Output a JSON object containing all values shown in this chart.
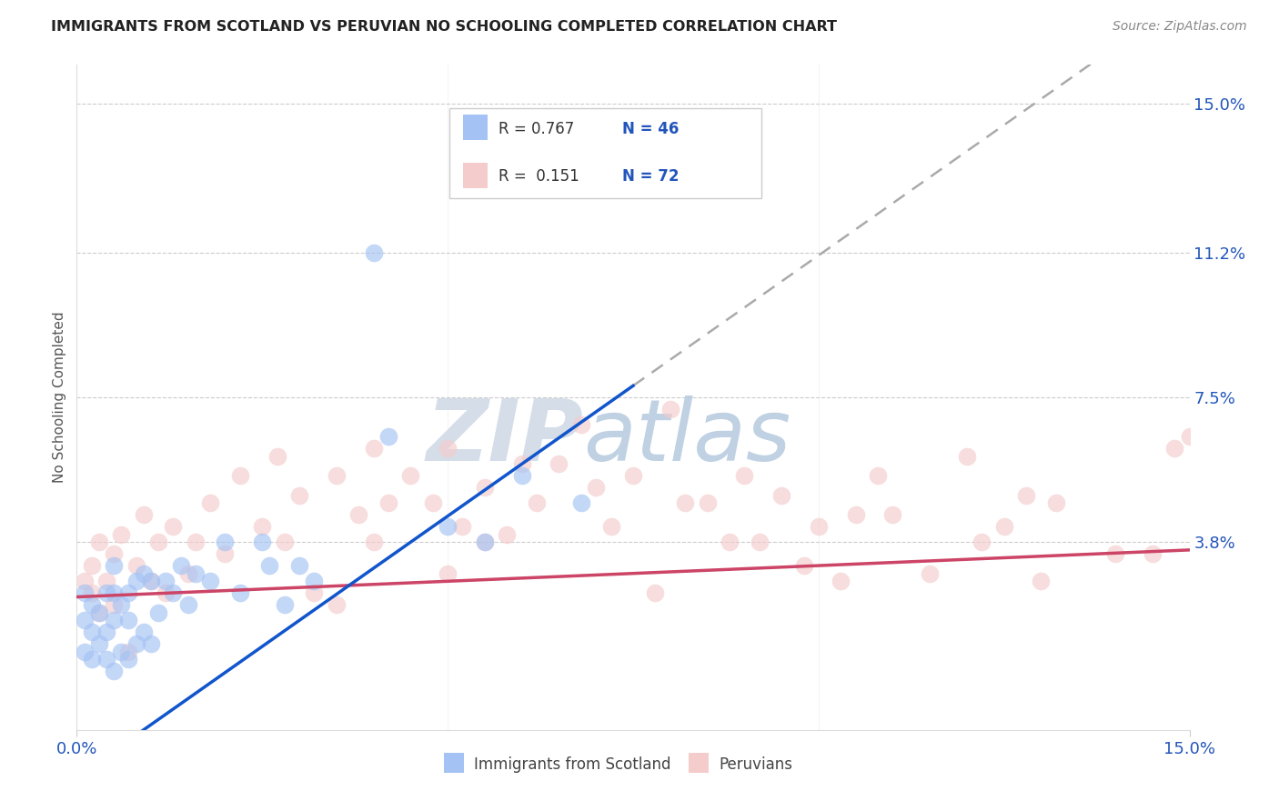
{
  "title": "IMMIGRANTS FROM SCOTLAND VS PERUVIAN NO SCHOOLING COMPLETED CORRELATION CHART",
  "source": "Source: ZipAtlas.com",
  "ylabel": "No Schooling Completed",
  "xmin": 0.0,
  "xmax": 0.15,
  "ymin": -0.01,
  "ymax": 0.16,
  "legend_r1": "R = 0.767",
  "legend_n1": "N = 46",
  "legend_r2": "R =  0.151",
  "legend_n2": "N = 72",
  "blue_color": "#a4c2f4",
  "pink_color": "#f4cccc",
  "blue_line_color": "#1155cc",
  "pink_line_color": "#cc4466",
  "dashed_line_color": "#aaaaaa",
  "background_color": "#ffffff",
  "watermark_zip_color": "#d0d8e8",
  "watermark_atlas_color": "#b8cce4",
  "ytick_positions": [
    0.0,
    0.038,
    0.075,
    0.112,
    0.15
  ],
  "ytick_labels": [
    "",
    "3.8%",
    "7.5%",
    "11.2%",
    "15.0%"
  ],
  "xtick_positions": [
    0.0,
    0.15
  ],
  "xtick_labels": [
    "0.0%",
    "15.0%"
  ],
  "blue_slope": 1.333,
  "blue_intercept": -0.022,
  "pink_slope": 0.08,
  "pink_intercept": 0.024,
  "blue_line_end_solid": 0.075,
  "scotland_x": [
    0.001,
    0.001,
    0.001,
    0.002,
    0.002,
    0.002,
    0.003,
    0.003,
    0.004,
    0.004,
    0.004,
    0.005,
    0.005,
    0.005,
    0.005,
    0.006,
    0.006,
    0.007,
    0.007,
    0.007,
    0.008,
    0.008,
    0.009,
    0.009,
    0.01,
    0.01,
    0.011,
    0.012,
    0.013,
    0.014,
    0.015,
    0.016,
    0.018,
    0.02,
    0.022,
    0.025,
    0.026,
    0.028,
    0.03,
    0.032,
    0.04,
    0.042,
    0.05,
    0.055,
    0.06,
    0.068
  ],
  "scotland_y": [
    0.01,
    0.018,
    0.025,
    0.008,
    0.015,
    0.022,
    0.012,
    0.02,
    0.008,
    0.015,
    0.025,
    0.005,
    0.018,
    0.025,
    0.032,
    0.01,
    0.022,
    0.008,
    0.018,
    0.025,
    0.012,
    0.028,
    0.015,
    0.03,
    0.012,
    0.028,
    0.02,
    0.028,
    0.025,
    0.032,
    0.022,
    0.03,
    0.028,
    0.038,
    0.025,
    0.038,
    0.032,
    0.022,
    0.032,
    0.028,
    0.112,
    0.065,
    0.042,
    0.038,
    0.055,
    0.048
  ],
  "peru_x": [
    0.001,
    0.002,
    0.002,
    0.003,
    0.003,
    0.004,
    0.005,
    0.005,
    0.006,
    0.007,
    0.008,
    0.009,
    0.01,
    0.011,
    0.012,
    0.013,
    0.015,
    0.016,
    0.018,
    0.02,
    0.022,
    0.025,
    0.027,
    0.028,
    0.03,
    0.032,
    0.035,
    0.035,
    0.038,
    0.04,
    0.04,
    0.042,
    0.045,
    0.048,
    0.05,
    0.05,
    0.052,
    0.055,
    0.055,
    0.058,
    0.06,
    0.062,
    0.065,
    0.068,
    0.07,
    0.072,
    0.075,
    0.078,
    0.08,
    0.082,
    0.085,
    0.088,
    0.09,
    0.092,
    0.095,
    0.098,
    0.1,
    0.103,
    0.105,
    0.108,
    0.11,
    0.115,
    0.12,
    0.122,
    0.125,
    0.128,
    0.13,
    0.132,
    0.14,
    0.145,
    0.148,
    0.15
  ],
  "peru_y": [
    0.028,
    0.025,
    0.032,
    0.02,
    0.038,
    0.028,
    0.022,
    0.035,
    0.04,
    0.01,
    0.032,
    0.045,
    0.028,
    0.038,
    0.025,
    0.042,
    0.03,
    0.038,
    0.048,
    0.035,
    0.055,
    0.042,
    0.06,
    0.038,
    0.05,
    0.025,
    0.022,
    0.055,
    0.045,
    0.038,
    0.062,
    0.048,
    0.055,
    0.048,
    0.03,
    0.062,
    0.042,
    0.052,
    0.038,
    0.04,
    0.058,
    0.048,
    0.058,
    0.068,
    0.052,
    0.042,
    0.055,
    0.025,
    0.072,
    0.048,
    0.048,
    0.038,
    0.055,
    0.038,
    0.05,
    0.032,
    0.042,
    0.028,
    0.045,
    0.055,
    0.045,
    0.03,
    0.06,
    0.038,
    0.042,
    0.05,
    0.028,
    0.048,
    0.035,
    0.035,
    0.062,
    0.065
  ]
}
